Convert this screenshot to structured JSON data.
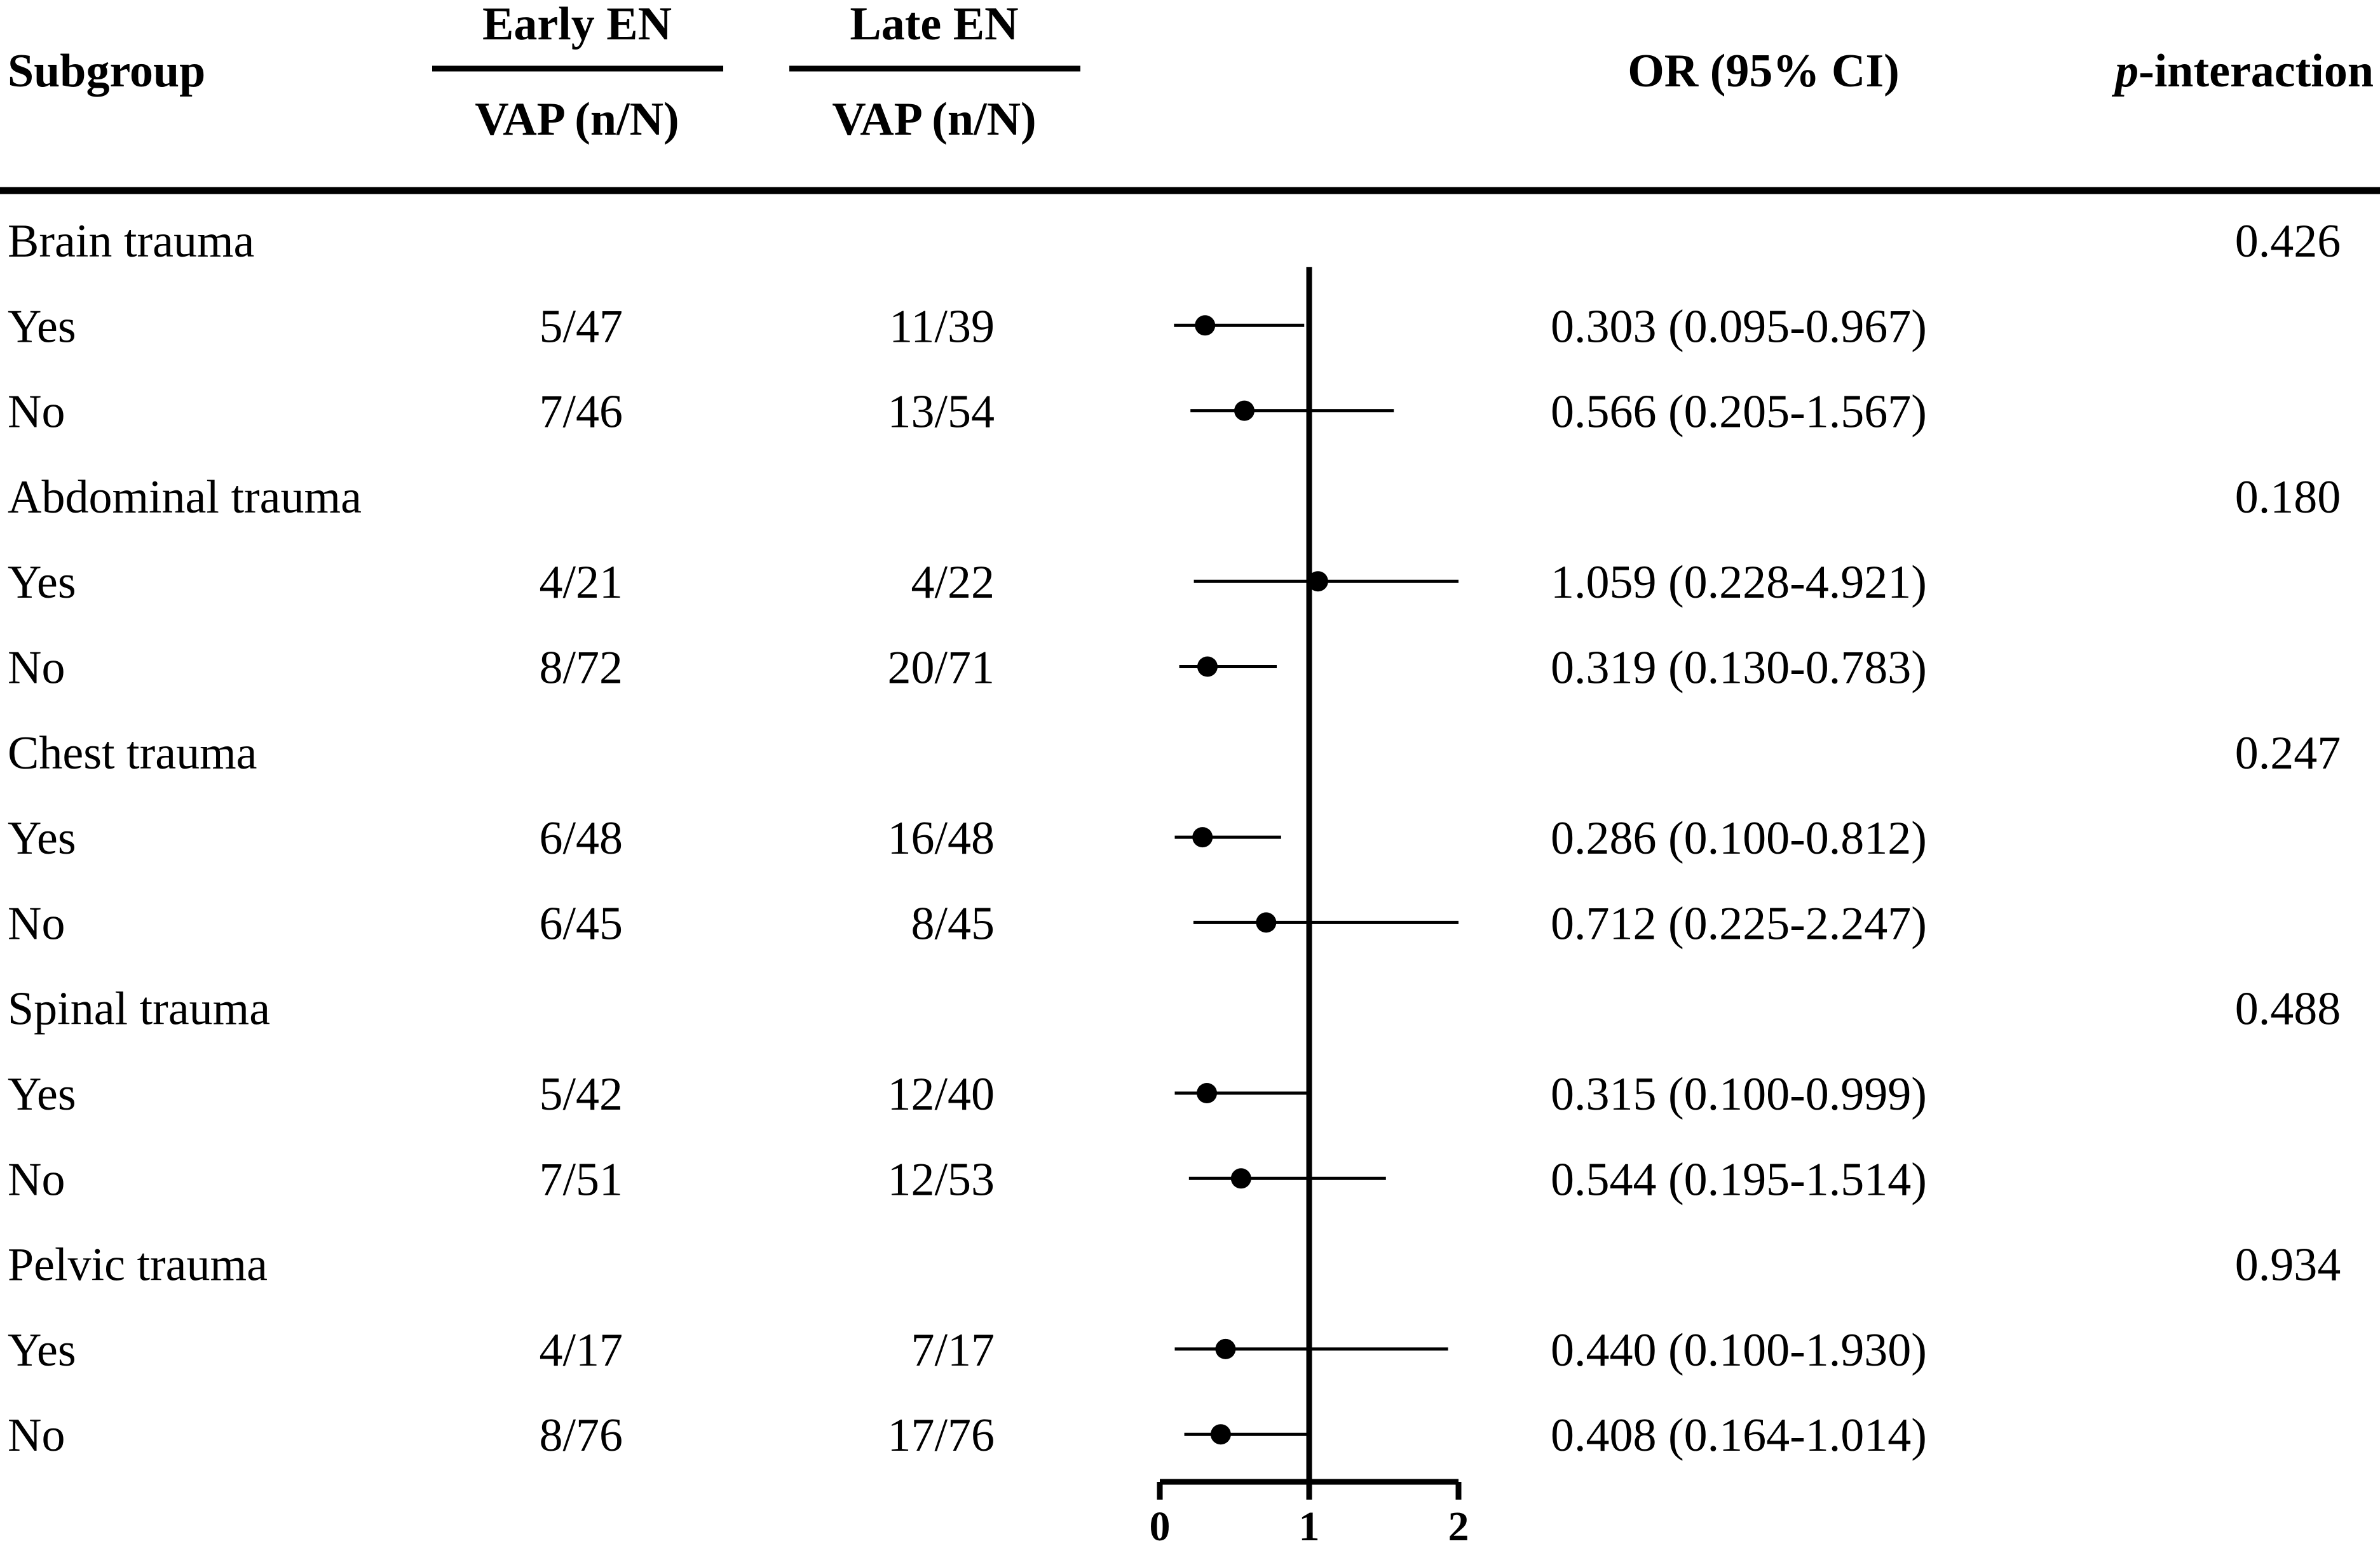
{
  "header": {
    "subgroup": "Subgroup",
    "early": "Early EN",
    "late": "Late EN",
    "early_sub": "VAP (n/N)",
    "late_sub": "VAP (n/N)",
    "or": "OR (95% CI)",
    "p_italic": "p",
    "p_rest": "-interaction"
  },
  "chart_data": {
    "type": "forest",
    "xlim": [
      0,
      2
    ],
    "reference_line": 1,
    "x_ticks": [
      "0",
      "1",
      "2"
    ],
    "rows": [
      {
        "label": "Brain trauma",
        "p": "0.426"
      },
      {
        "label": "Yes",
        "early": "5/47",
        "late": "11/39",
        "or_text": "0.303 (0.095-0.967)",
        "or": 0.303,
        "lo": 0.095,
        "hi": 0.967
      },
      {
        "label": "No",
        "early": "7/46",
        "late": "13/54",
        "or_text": "0.566 (0.205-1.567)",
        "or": 0.566,
        "lo": 0.205,
        "hi": 1.567
      },
      {
        "label": "Abdominal trauma",
        "p": "0.180"
      },
      {
        "label": "Yes",
        "early": "4/21",
        "late": "4/22",
        "or_text": "1.059 (0.228-4.921)",
        "or": 1.059,
        "lo": 0.228,
        "hi": 4.921
      },
      {
        "label": "No",
        "early": "8/72",
        "late": "20/71",
        "or_text": "0.319 (0.130-0.783)",
        "or": 0.319,
        "lo": 0.13,
        "hi": 0.783
      },
      {
        "label": "Chest trauma",
        "p": "0.247"
      },
      {
        "label": "Yes",
        "early": "6/48",
        "late": "16/48",
        "or_text": "0.286 (0.100-0.812)",
        "or": 0.286,
        "lo": 0.1,
        "hi": 0.812
      },
      {
        "label": "No",
        "early": "6/45",
        "late": "8/45",
        "or_text": "0.712 (0.225-2.247)",
        "or": 0.712,
        "lo": 0.225,
        "hi": 2.247
      },
      {
        "label": "Spinal trauma",
        "p": "0.488"
      },
      {
        "label": "Yes",
        "early": "5/42",
        "late": "12/40",
        "or_text": "0.315 (0.100-0.999)",
        "or": 0.315,
        "lo": 0.1,
        "hi": 0.999
      },
      {
        "label": "No",
        "early": "7/51",
        "late": "12/53",
        "or_text": "0.544 (0.195-1.514)",
        "or": 0.544,
        "lo": 0.195,
        "hi": 1.514
      },
      {
        "label": "Pelvic trauma",
        "p": "0.934"
      },
      {
        "label": "Yes",
        "early": "4/17",
        "late": "7/17",
        "or_text": "0.440 (0.100-1.930)",
        "or": 0.44,
        "lo": 0.1,
        "hi": 1.93
      },
      {
        "label": "No",
        "early": "8/76",
        "late": "17/76",
        "or_text": "0.408 (0.164-1.014)",
        "or": 0.408,
        "lo": 0.164,
        "hi": 1.014
      }
    ]
  }
}
